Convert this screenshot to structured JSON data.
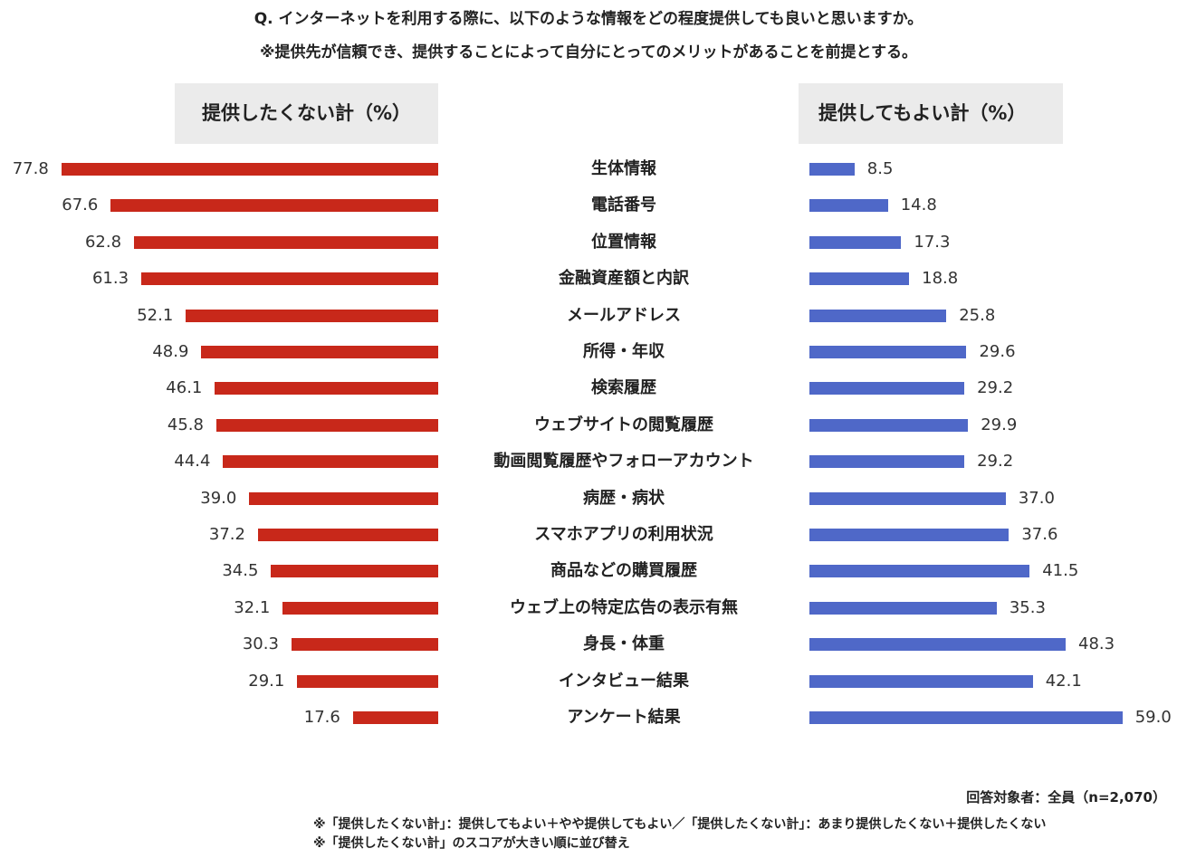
{
  "title_line1": "Q. インターネットを利用する際に、以下のような情報をどの程度提供しても良いと思いますか。",
  "title_line2": "※提供先が信頼でき、提供することによって自分にとってのメリットがあることを前提とする。",
  "footer": {
    "respondents": "回答対象者：全員（n=2,070）",
    "note1": "※「提供したくない計」：提供してもよい＋やや提供してもよい／「提供したくない計」：あまり提供したくない＋提供したくない",
    "note2": "※「提供したくない計」のスコアが大きい順に並び替え"
  },
  "chart_data": {
    "type": "bar",
    "orientation": "horizontal-butterfly",
    "categories": [
      "生体情報",
      "電話番号",
      "位置情報",
      "金融資産額と内訳",
      "メールアドレス",
      "所得・年収",
      "検索履歴",
      "ウェブサイトの閲覧履歴",
      "動画閲覧履歴やフォローアカウント",
      "病歴・病状",
      "スマホアプリの利用状況",
      "商品などの購買履歴",
      "ウェブ上の特定広告の表示有無",
      "身長・体重",
      "インタビュー結果",
      "アンケート結果"
    ],
    "series": [
      {
        "name": "提供したくない計（%）",
        "color": "#c8281a",
        "values": [
          77.8,
          67.6,
          62.8,
          61.3,
          52.1,
          48.9,
          46.1,
          45.8,
          44.4,
          39.0,
          37.2,
          34.5,
          32.1,
          30.3,
          29.1,
          17.6
        ]
      },
      {
        "name": "提供してもよい計（%）",
        "color": "#4f68c8",
        "values": [
          8.5,
          14.8,
          17.3,
          18.8,
          25.8,
          29.6,
          29.2,
          29.9,
          29.2,
          37.0,
          37.6,
          41.5,
          35.3,
          48.3,
          42.1,
          59.0
        ]
      }
    ],
    "unit": "%"
  }
}
